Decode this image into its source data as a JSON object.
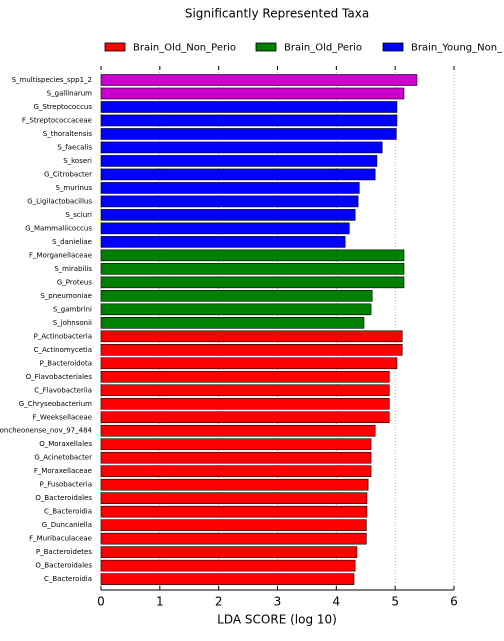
{
  "chart_data": {
    "type": "barh",
    "title": "Significantly Represented Taxa",
    "x_label": "LDA SCORE (log 10)",
    "legend": [
      {
        "name": "Brain_Old_Non_Perio",
        "color": "#ff0000"
      },
      {
        "name": "Brain_Old_Perio",
        "color": "#008000"
      },
      {
        "name": "Brain_Young_Non_",
        "color": "#0000ff"
      }
    ],
    "categories": [
      "S_multispecies_spp1_2",
      "S_gallinarum",
      "G_Streptococcus",
      "F_Streptococcaceae",
      "S_thoraltensis",
      "S_faecalis",
      "S_koseri",
      "G_Citrobacter",
      "S_murinus",
      "G_Ligilactobacillus",
      "S_sciuri",
      "G_Mammaliicoccus",
      "S_danieliae",
      "F_Morganellaceae",
      "S_mirabilis",
      "G_Proteus",
      "S_pneumoniae",
      "S_gambrini",
      "S_johnsonii",
      "P_Actinobacteria",
      "C_Actinomycetia",
      "P_Bacteroidota",
      "O_Flavobacteriales",
      "C_Flavobacteriia",
      "G_Chryseobacterium",
      "F_Weeksellaceae",
      "oncheonense_nov_97_484",
      "O_Moraxellales",
      "G_Acinetobacter",
      "F_Moraxellaceae",
      "P_Fusobacteria",
      "O_Bacteroidales",
      "C_Bacteroidia",
      "G_Duncaniella",
      "F_Muribaculaceae",
      "P_Bacteroidetes",
      "O_Bacteroidales",
      "C_Bacteroidia"
    ],
    "values": [
      5.37,
      5.15,
      5.03,
      5.03,
      5.02,
      4.78,
      4.69,
      4.66,
      4.39,
      4.37,
      4.32,
      4.22,
      4.15,
      5.15,
      5.15,
      5.15,
      4.61,
      4.59,
      4.47,
      5.12,
      5.12,
      5.03,
      4.9,
      4.9,
      4.9,
      4.9,
      4.66,
      4.59,
      4.59,
      4.59,
      4.54,
      4.52,
      4.52,
      4.51,
      4.51,
      4.35,
      4.32,
      4.3
    ],
    "colors": [
      "#cc00cc",
      "#cc00cc",
      "#0000ff",
      "#0000ff",
      "#0000ff",
      "#0000ff",
      "#0000ff",
      "#0000ff",
      "#0000ff",
      "#0000ff",
      "#0000ff",
      "#0000ff",
      "#0000ff",
      "#008000",
      "#008000",
      "#008000",
      "#008000",
      "#008000",
      "#008000",
      "#ff0000",
      "#ff0000",
      "#ff0000",
      "#ff0000",
      "#ff0000",
      "#ff0000",
      "#ff0000",
      "#ff0000",
      "#ff0000",
      "#ff0000",
      "#ff0000",
      "#ff0000",
      "#ff0000",
      "#ff0000",
      "#ff0000",
      "#ff0000",
      "#ff0000",
      "#ff0000",
      "#ff0000"
    ],
    "xlim": [
      0,
      6
    ],
    "xticks": [
      0,
      1,
      2,
      3,
      4,
      5,
      6
    ],
    "grid": true
  }
}
